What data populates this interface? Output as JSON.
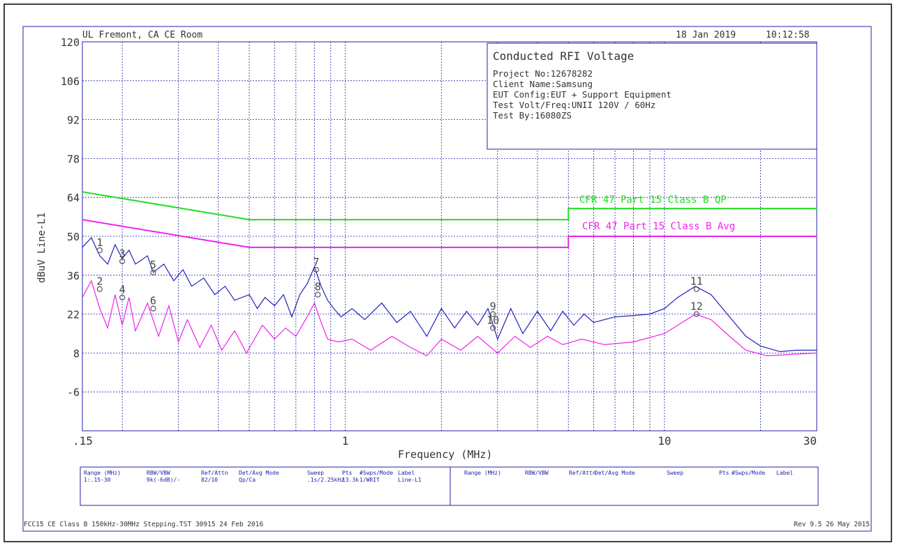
{
  "header": {
    "lab": "UL Fremont, CA CE Room",
    "date": "18 Jan 2019",
    "time": "10:12:58"
  },
  "infobox": {
    "title": "Conducted RFI Voltage",
    "lines": [
      "Project No:12678282",
      "Client Name:Samsung",
      "EUT Config:EUT + Support Equipment",
      "Test Volt/Freq:UNII 120V / 60Hz",
      "Test By:16080ZS"
    ]
  },
  "chart_data": {
    "type": "line",
    "xlabel": "Frequency (MHz)",
    "ylabel": "dBuV Line-L1",
    "xscale": "log",
    "xlim": [
      0.15,
      30
    ],
    "ylim": [
      -20,
      120
    ],
    "x_tick_labels": [
      ".15",
      "1",
      "10",
      "30"
    ],
    "x_tick_values": [
      0.15,
      1,
      10,
      30
    ],
    "y_ticks": [
      -6,
      8,
      22,
      36,
      50,
      64,
      78,
      92,
      106,
      120
    ],
    "grid": true,
    "limits": [
      {
        "name": "CFR 47 Part 15 Class B QP",
        "color": "#22dd22",
        "points": [
          [
            0.15,
            66
          ],
          [
            0.5,
            56
          ],
          [
            5,
            56
          ],
          [
            5,
            60
          ],
          [
            30,
            60
          ]
        ]
      },
      {
        "name": "CFR 47 Part 15 Class B Avg",
        "color": "#ee22ee",
        "points": [
          [
            0.15,
            56
          ],
          [
            0.5,
            46
          ],
          [
            5,
            46
          ],
          [
            5,
            50
          ],
          [
            30,
            50
          ]
        ]
      }
    ],
    "series": [
      {
        "color": "#2222bb",
        "points": [
          [
            0.15,
            46
          ],
          [
            0.16,
            49.5
          ],
          [
            0.17,
            43
          ],
          [
            0.18,
            40
          ],
          [
            0.19,
            47
          ],
          [
            0.2,
            42
          ],
          [
            0.21,
            45
          ],
          [
            0.22,
            40
          ],
          [
            0.24,
            43
          ],
          [
            0.25,
            37
          ],
          [
            0.27,
            40
          ],
          [
            0.29,
            34
          ],
          [
            0.31,
            38
          ],
          [
            0.33,
            32
          ],
          [
            0.36,
            35
          ],
          [
            0.39,
            29
          ],
          [
            0.42,
            32
          ],
          [
            0.45,
            27
          ],
          [
            0.5,
            29
          ],
          [
            0.53,
            24
          ],
          [
            0.56,
            28
          ],
          [
            0.6,
            25
          ],
          [
            0.64,
            29
          ],
          [
            0.68,
            21
          ],
          [
            0.72,
            29
          ],
          [
            0.76,
            33
          ],
          [
            0.8,
            39
          ],
          [
            0.84,
            32
          ],
          [
            0.88,
            27
          ],
          [
            0.92,
            24
          ],
          [
            0.97,
            21
          ],
          [
            1.05,
            24
          ],
          [
            1.15,
            20
          ],
          [
            1.3,
            26
          ],
          [
            1.45,
            19
          ],
          [
            1.6,
            23
          ],
          [
            1.8,
            14
          ],
          [
            2.0,
            24
          ],
          [
            2.2,
            17
          ],
          [
            2.4,
            23
          ],
          [
            2.6,
            18
          ],
          [
            2.8,
            24
          ],
          [
            3.0,
            13
          ],
          [
            3.3,
            24
          ],
          [
            3.6,
            15
          ],
          [
            4.0,
            23
          ],
          [
            4.4,
            16
          ],
          [
            4.8,
            23
          ],
          [
            5.2,
            18
          ],
          [
            5.6,
            22
          ],
          [
            6.0,
            19
          ],
          [
            7.0,
            21
          ],
          [
            8.0,
            21.5
          ],
          [
            9.0,
            22
          ],
          [
            10.0,
            24
          ],
          [
            11.0,
            28
          ],
          [
            12.5,
            32
          ],
          [
            14.0,
            29
          ],
          [
            16.0,
            21
          ],
          [
            18.0,
            14
          ],
          [
            20.0,
            10.5
          ],
          [
            23.0,
            8.5
          ],
          [
            26.0,
            9
          ],
          [
            30.0,
            9
          ]
        ]
      },
      {
        "color": "#ee22ee",
        "points": [
          [
            0.15,
            28
          ],
          [
            0.16,
            34
          ],
          [
            0.17,
            24
          ],
          [
            0.18,
            17
          ],
          [
            0.19,
            29
          ],
          [
            0.2,
            18
          ],
          [
            0.21,
            28
          ],
          [
            0.22,
            16
          ],
          [
            0.24,
            26
          ],
          [
            0.26,
            14
          ],
          [
            0.28,
            25
          ],
          [
            0.3,
            12
          ],
          [
            0.32,
            20
          ],
          [
            0.35,
            10
          ],
          [
            0.38,
            18
          ],
          [
            0.41,
            9
          ],
          [
            0.45,
            16
          ],
          [
            0.49,
            8
          ],
          [
            0.55,
            18
          ],
          [
            0.6,
            13
          ],
          [
            0.65,
            17
          ],
          [
            0.7,
            14
          ],
          [
            0.75,
            20
          ],
          [
            0.8,
            26
          ],
          [
            0.84,
            19
          ],
          [
            0.88,
            13
          ],
          [
            0.95,
            12
          ],
          [
            1.05,
            13
          ],
          [
            1.2,
            9
          ],
          [
            1.4,
            14
          ],
          [
            1.6,
            10
          ],
          [
            1.8,
            7
          ],
          [
            2.0,
            13
          ],
          [
            2.3,
            9
          ],
          [
            2.6,
            14
          ],
          [
            3.0,
            8
          ],
          [
            3.4,
            14
          ],
          [
            3.8,
            10
          ],
          [
            4.3,
            14
          ],
          [
            4.8,
            11
          ],
          [
            5.5,
            13
          ],
          [
            6.5,
            11
          ],
          [
            8.0,
            12
          ],
          [
            10.0,
            15
          ],
          [
            12.5,
            22
          ],
          [
            14.0,
            20
          ],
          [
            16.0,
            14
          ],
          [
            18.0,
            9
          ],
          [
            21.0,
            7
          ],
          [
            25.0,
            7.5
          ],
          [
            30.0,
            8
          ]
        ]
      }
    ],
    "markers": [
      {
        "id": "1",
        "x": 0.17,
        "y": 45
      },
      {
        "id": "2",
        "x": 0.17,
        "y": 31
      },
      {
        "id": "3",
        "x": 0.2,
        "y": 41
      },
      {
        "id": "4",
        "x": 0.2,
        "y": 28
      },
      {
        "id": "5",
        "x": 0.25,
        "y": 37
      },
      {
        "id": "6",
        "x": 0.25,
        "y": 24
      },
      {
        "id": "7",
        "x": 0.81,
        "y": 38
      },
      {
        "id": "8",
        "x": 0.82,
        "y": 29
      },
      {
        "id": "9",
        "x": 2.9,
        "y": 22
      },
      {
        "id": "10",
        "x": 2.9,
        "y": 17
      },
      {
        "id": "11",
        "x": 12.6,
        "y": 31
      },
      {
        "id": "12",
        "x": 12.6,
        "y": 22
      }
    ]
  },
  "settings": {
    "left": {
      "headers": [
        "Range (MHz)",
        "RBW/VBW",
        "Ref/Attn",
        "Det/Avg Mode",
        "Sweep",
        "Pts",
        "#Swps/Mode",
        "Label"
      ],
      "values": [
        "1:.15-30",
        "9k(-6dB)/-",
        "82/10",
        "Qp/Ca",
        ".1s/2.25kHz",
        "13.3k",
        "1/WRIT",
        "Line-L1"
      ]
    },
    "right": {
      "headers": [
        "Range (MHz)",
        "RBW/VBW",
        "Ref/Attn",
        "Det/Avg Mode",
        "Sweep",
        "Pts",
        "#Swps/Mode",
        "Label"
      ]
    }
  },
  "footer": {
    "left": "FCC15 CE Class B 150kHz-30MHz Stepping.TST 30915 24 Feb 2016",
    "right": "Rev 9.5 26 May 2015"
  }
}
